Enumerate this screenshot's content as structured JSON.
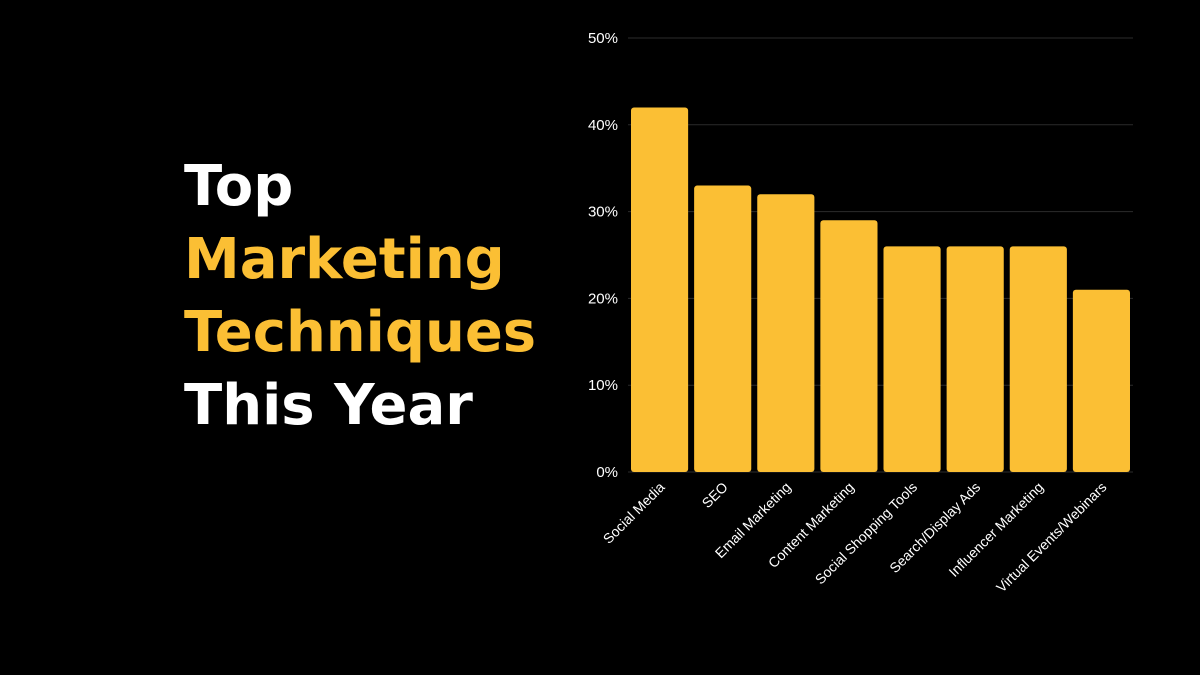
{
  "headline": {
    "line1": "Top",
    "line2": "Marketing",
    "line3": "Techniques",
    "line4": "This Year"
  },
  "colors": {
    "background": "#000000",
    "bar": "#fbbf34",
    "accent_text": "#fbbf34",
    "text": "#ffffff",
    "grid": "#2b2b2b"
  },
  "chart_data": {
    "type": "bar",
    "title": "",
    "xlabel": "",
    "ylabel": "",
    "categories": [
      "Social Media",
      "SEO",
      "Email Marketing",
      "Content Marketing",
      "Social Shopping Tools",
      "Search/Display Ads",
      "Influencer Marketing",
      "Virtual Events/Webinars"
    ],
    "values": [
      42,
      33,
      32,
      29,
      26,
      26,
      26,
      21
    ],
    "ylim": [
      0,
      50
    ],
    "yticks": [
      0,
      10,
      20,
      30,
      40,
      50
    ],
    "ytick_labels": [
      "0%",
      "10%",
      "20%",
      "30%",
      "40%",
      "50%"
    ],
    "grid": true,
    "legend": "none"
  }
}
